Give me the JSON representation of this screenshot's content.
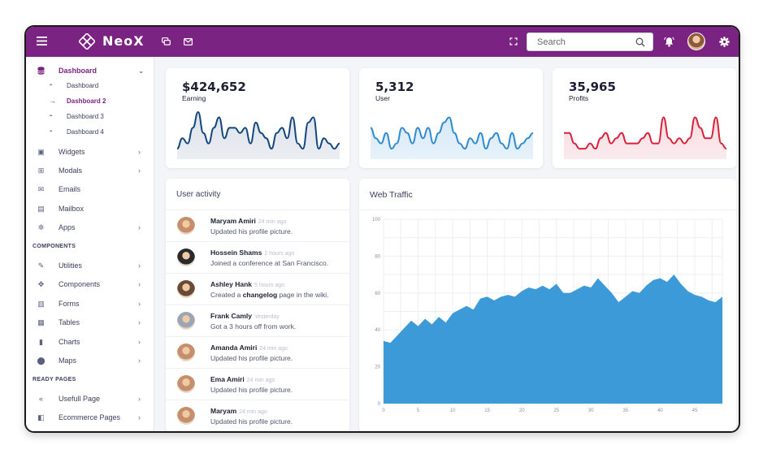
{
  "app": {
    "brand": "NeoX"
  },
  "topbar": {
    "search_placeholder": "Search"
  },
  "sidebar": {
    "dashboard": {
      "label": "Dashboard",
      "active": true
    },
    "sub_items": [
      {
        "label": "Dashboard",
        "active": false
      },
      {
        "label": "Dashboard 2",
        "active": true
      },
      {
        "label": "Dashboard 3",
        "active": false
      },
      {
        "label": "Dashboard 4",
        "active": false
      }
    ],
    "main_items": [
      {
        "label": "Widgets",
        "icon": "widgets-icon",
        "chevron": true
      },
      {
        "label": "Modals",
        "icon": "gift-icon",
        "chevron": true
      },
      {
        "label": "Emails",
        "icon": "envelope-icon",
        "chevron": false
      },
      {
        "label": "Mailbox",
        "icon": "inbox-icon",
        "chevron": false
      },
      {
        "label": "Apps",
        "icon": "apps-gear-icon",
        "chevron": true
      }
    ],
    "components_title": "COMPONENTS",
    "component_items": [
      {
        "label": "Utilities",
        "icon": "pencil-icon",
        "chevron": true
      },
      {
        "label": "Components",
        "icon": "components-icon",
        "chevron": true
      },
      {
        "label": "Forms",
        "icon": "form-icon",
        "chevron": true
      },
      {
        "label": "Tables",
        "icon": "table-icon",
        "chevron": true
      },
      {
        "label": "Charts",
        "icon": "chart-icon",
        "chevron": true
      },
      {
        "label": "Maps",
        "icon": "map-pin-icon",
        "chevron": true
      }
    ],
    "ready_title": "READY PAGES",
    "ready_items": [
      {
        "label": "Usefull Page",
        "icon": "chevrons-left-icon",
        "chevron": true
      },
      {
        "label": "Ecommerce Pages",
        "icon": "shopping-bag-icon",
        "chevron": true
      }
    ]
  },
  "stats": [
    {
      "value": "$424,652",
      "label": "Earning",
      "color": "#12477e",
      "fill": "#dde2ea",
      "points": [
        2,
        4,
        3,
        6,
        9,
        5,
        3,
        6,
        8,
        4,
        6,
        6,
        5,
        6,
        3,
        7,
        5,
        4,
        2,
        5,
        6,
        4,
        8,
        3,
        2,
        7,
        8,
        2,
        4,
        3,
        2,
        3
      ]
    },
    {
      "value": "5,312",
      "label": "User",
      "color": "#2f8bd0",
      "fill": "#d7e9f7",
      "points": [
        6,
        4,
        3,
        5,
        2,
        3,
        6,
        5,
        3,
        6,
        4,
        6,
        3,
        5,
        7,
        8,
        5,
        3,
        2,
        4,
        3,
        5,
        2,
        4,
        5,
        3,
        2,
        5,
        2,
        3,
        4,
        5
      ]
    },
    {
      "value": "35,965",
      "label": "Profits",
      "color": "#d9213a",
      "fill": "#f8dde1",
      "points": [
        5,
        5,
        3,
        2,
        2,
        3,
        2,
        4,
        5,
        3,
        4,
        5,
        3,
        3,
        3,
        4,
        5,
        3,
        3,
        8,
        4,
        3,
        4,
        3,
        4,
        8,
        6,
        4,
        4,
        8,
        3,
        2
      ]
    }
  ],
  "activity": {
    "title": "User activity",
    "items": [
      {
        "name": "Maryam Amiri",
        "time": "24 min ago",
        "text_pre": "Updated his profile picture.",
        "link": "",
        "text_post": "",
        "avatar_color": "#c68e6a"
      },
      {
        "name": "Hossein Shams",
        "time": "2 hours ago",
        "text_pre": "Joined a conference at San Francisco.",
        "link": "",
        "text_post": "",
        "avatar_color": "#2a2a2a"
      },
      {
        "name": "Ashley Hank",
        "time": "5 hours ago",
        "text_pre": "Created a ",
        "link": "changelog",
        "text_post": " page in the wiki.",
        "avatar_color": "#6b4a33"
      },
      {
        "name": "Frank Camly",
        "time": "Yesterday",
        "text_pre": "Got a 3 hours off from work.",
        "link": "",
        "text_post": "",
        "avatar_color": "#9aa6b6"
      },
      {
        "name": "Amanda Amiri",
        "time": "24 min ago",
        "text_pre": "Updated his profile picture.",
        "link": "",
        "text_post": "",
        "avatar_color": "#c68e6a"
      },
      {
        "name": "Ema Amiri",
        "time": "24 min ago",
        "text_pre": "Updated his profile picture.",
        "link": "",
        "text_post": "",
        "avatar_color": "#c68e6a"
      },
      {
        "name": "Maryam",
        "time": "24 min ago",
        "text_pre": "Updated his profile picture.",
        "link": "",
        "text_post": "",
        "avatar_color": "#c68e6a"
      }
    ]
  },
  "traffic": {
    "title": "Web Traffic"
  },
  "chart_data": {
    "type": "area",
    "title": "Web Traffic",
    "xlabel": "",
    "ylabel": "",
    "xlim": [
      0,
      49
    ],
    "ylim": [
      0,
      100
    ],
    "x_ticks": [
      0,
      5,
      10,
      15,
      20,
      25,
      30,
      35,
      40,
      45
    ],
    "y_ticks": [
      0,
      20,
      40,
      60,
      80,
      100
    ],
    "grid": true,
    "color": "#3d9ad8",
    "x": [
      0,
      1,
      2,
      3,
      4,
      5,
      6,
      7,
      8,
      9,
      10,
      11,
      12,
      13,
      14,
      15,
      16,
      17,
      18,
      19,
      20,
      21,
      22,
      23,
      24,
      25,
      26,
      27,
      28,
      29,
      30,
      31,
      32,
      33,
      34,
      35,
      36,
      37,
      38,
      39,
      40,
      41,
      42,
      43,
      44,
      45,
      46,
      47,
      48,
      49
    ],
    "values": [
      34,
      33,
      37,
      41,
      45,
      42,
      46,
      43,
      47,
      44,
      49,
      51,
      53,
      51,
      57,
      58,
      56,
      58,
      59,
      58,
      61,
      63,
      62,
      64,
      62,
      65,
      60,
      60,
      62,
      64,
      63,
      68,
      64,
      60,
      55,
      58,
      61,
      60,
      64,
      67,
      68,
      66,
      70,
      65,
      61,
      59,
      58,
      56,
      55,
      58
    ]
  }
}
